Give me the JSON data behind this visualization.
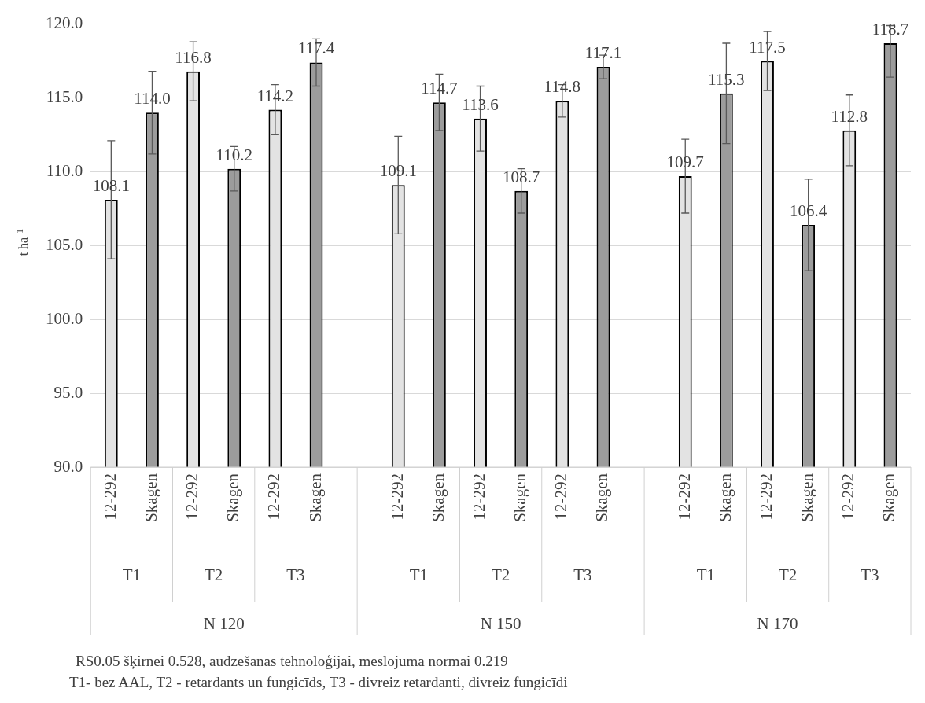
{
  "chart_data": {
    "type": "bar",
    "ylabel": "t ha$^{-1}$",
    "categories": [
      "12-292",
      "Skagen",
      "12-292",
      "Skagen",
      "12-292",
      "Skagen",
      null,
      "12-292",
      "Skagen",
      "12-292",
      "Skagen",
      "12-292",
      "Skagen",
      null,
      "12-292",
      "Skagen",
      "12-292",
      "Skagen",
      "12-292",
      "Skagen"
    ],
    "values": [
      108.1,
      114.0,
      116.8,
      110.2,
      114.2,
      117.4,
      null,
      109.1,
      114.7,
      113.6,
      108.7,
      114.8,
      117.1,
      null,
      109.7,
      115.3,
      117.5,
      106.4,
      112.8,
      118.7
    ],
    "colors": [
      "#e3e3e3",
      "#9c9c9c",
      "#e3e3e3",
      "#9c9c9c",
      "#e3e3e3",
      "#9c9c9c",
      "#ffffff",
      "#e3e3e3",
      "#9c9c9c",
      "#e3e3e3",
      "#9c9c9c",
      "#e3e3e3",
      "#9c9c9c",
      "#ffffff",
      "#e3e3e3",
      "#9c9c9c",
      "#e3e3e3",
      "#9c9c9c",
      "#e3e3e3",
      "#9c9c9c"
    ],
    "errors": [
      4.0,
      2.8,
      2.0,
      1.5,
      1.7,
      1.6,
      null,
      3.3,
      1.9,
      2.2,
      1.5,
      1.1,
      0.8,
      null,
      2.5,
      3.4,
      2.0,
      3.1,
      2.4,
      [
        116.4,
        119.9
      ]
    ],
    "value_labels": [
      "108.1",
      "114.0",
      "116.8",
      "110.2",
      "114.2",
      "117.4",
      null,
      "109.1",
      "114.7",
      "113.6",
      "108.7",
      "114.8",
      "117.1",
      null,
      "109.7",
      "115.3",
      "117.5",
      "106.4",
      "112.8",
      "118.7"
    ],
    "ylim": [
      90,
      120
    ],
    "yticks": [
      {
        "value": 90,
        "label": "90.0"
      },
      {
        "value": 95,
        "label": "95.0"
      },
      {
        "value": 100,
        "label": "100.0"
      },
      {
        "value": 105,
        "label": "105.0"
      },
      {
        "value": 110,
        "label": "110.0"
      },
      {
        "value": 115,
        "label": "115.0"
      },
      {
        "value": 120,
        "label": "120.0"
      }
    ],
    "grid": "y",
    "legend": false,
    "annotations": [
      "T1",
      "T2",
      "T3",
      "T1",
      "T2",
      "T3",
      "T1",
      "T2",
      "T3",
      "N 120",
      "N 150",
      "N 170",
      "RS0.05 šķirnei 0.528, audzēšanas tehnoloģijai, mēslojuma normai 0.219",
      "T1- bez AAL, T2 - retardants un fungicīds, T3 - divreiz retardanti, divreiz fungicīdi"
    ]
  }
}
